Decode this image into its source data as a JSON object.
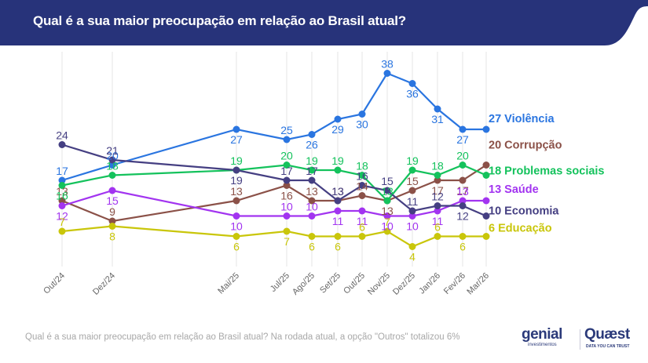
{
  "header": {
    "title": "Qual é a sua maior preocupação em relação ao Brasil atual?",
    "background": "#27337a"
  },
  "footnote": "Qual é a sua maior preocupação em relação ao Brasil atual? Na rodada atual, a opção \"Outros\" totalizou 6%",
  "logos": {
    "genial": "genial",
    "genial_sub": "investimentos",
    "quaest": "Quæst",
    "quaest_sub": "DATA YOU CAN TRUST"
  },
  "chart_data": {
    "type": "line",
    "title": "Qual é a sua maior preocupação em relação ao Brasil atual?",
    "xlabel": "",
    "ylabel": "",
    "grid": "vertical",
    "legend": "right end labels",
    "categories": [
      "Out/24",
      "Dez/24",
      "Mai/25",
      "Jul/25",
      "Ago/25",
      "Set/25",
      "Out/25",
      "Nov/25",
      "Dez/25",
      "Jan/26",
      "Fev/26",
      "Mar/26"
    ],
    "ylim": [
      0,
      40
    ],
    "series": [
      {
        "name": "Violência",
        "color": "#2a75e0",
        "end_label": "27 Violência",
        "values": [
          17,
          20,
          27,
          25,
          26,
          29,
          30,
          38,
          36,
          31,
          27,
          27
        ]
      },
      {
        "name": "Corrupção",
        "color": "#8b5148",
        "end_label": "20 Corrupção",
        "values": [
          13,
          9,
          13,
          16,
          13,
          13,
          14,
          13,
          15,
          17,
          17,
          20
        ]
      },
      {
        "name": "Problemas sociais",
        "color": "#14c25c",
        "end_label": "18 Problemas sociais",
        "values": [
          16,
          18,
          19,
          20,
          19,
          19,
          18,
          13,
          19,
          18,
          20,
          18
        ]
      },
      {
        "name": "Saúde",
        "color": "#a234f0",
        "end_label": "13 Saúde",
        "values": [
          12,
          15,
          10,
          10,
          10,
          11,
          11,
          10,
          10,
          11,
          13,
          13
        ]
      },
      {
        "name": "Economia",
        "color": "#453f82",
        "end_label": "10 Economia",
        "values": [
          24,
          21,
          19,
          17,
          17,
          13,
          16,
          15,
          11,
          12,
          12,
          10
        ]
      },
      {
        "name": "Educação",
        "color": "#c9c60a",
        "end_label": "6 Educação",
        "values": [
          7,
          8,
          6,
          7,
          6,
          6,
          6,
          7,
          4,
          6,
          6,
          6
        ]
      }
    ],
    "label_positions": {
      "Violência": [
        "above",
        "above",
        "below",
        "above",
        "below",
        "below",
        "below",
        "above",
        "below",
        "below",
        "below",
        "end"
      ],
      "Corrupção": [
        "above",
        "above",
        "above",
        "below",
        "above",
        "above",
        "above",
        "below",
        "above",
        "below",
        "below",
        "end"
      ],
      "Problemas sociais": [
        "below",
        "above",
        "above",
        "above",
        "above",
        "above",
        "above",
        "above",
        "above",
        "above",
        "above",
        "end"
      ],
      "Saúde": [
        "below",
        "below",
        "below",
        "above",
        "above",
        "below",
        "below",
        "below",
        "below",
        "below",
        "above",
        "end"
      ],
      "Economia": [
        "above",
        "above",
        "below",
        "above",
        "above",
        "above",
        "above",
        "above",
        "above",
        "above",
        "below",
        "end"
      ],
      "Educação": [
        "above",
        "below",
        "below",
        "below",
        "below",
        "below",
        "above",
        "above",
        "below",
        "above",
        "below",
        "end"
      ]
    }
  }
}
